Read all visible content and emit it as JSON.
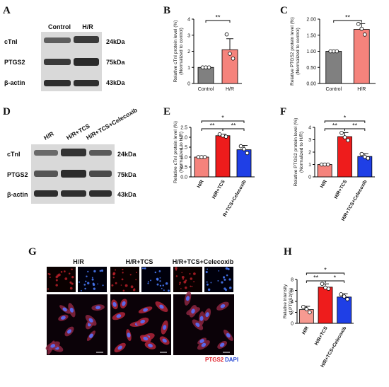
{
  "panels": {
    "A": {
      "letter": "A",
      "columns": [
        "Control",
        "H/R"
      ],
      "rows": [
        "cTnI",
        "PTGS2",
        "β-actin"
      ],
      "sizes": [
        "24kDa",
        "75kDa",
        "43kDa"
      ]
    },
    "B": {
      "letter": "B"
    },
    "C": {
      "letter": "C"
    },
    "D": {
      "letter": "D",
      "columns": [
        "H/R",
        "H/R+TCS",
        "H/R+TCS+Celecoxib"
      ],
      "rows": [
        "cTnI",
        "PTGS2",
        "β-actin"
      ],
      "sizes": [
        "24kDa",
        "75kDa",
        "43kDa"
      ]
    },
    "E": {
      "letter": "E"
    },
    "F": {
      "letter": "F"
    },
    "G": {
      "letter": "G",
      "columns": [
        "H/R",
        "H/R+TCS",
        "H/R+TCS+Celecoxib"
      ],
      "stain_red": "PTGS2",
      "stain_blue": "DAPI"
    },
    "H": {
      "letter": "H"
    }
  },
  "colors": {
    "gray": "#808080",
    "salmon": "#f5837c",
    "red": "#ee1c1c",
    "blue": "#1f3fe6",
    "light_salmon": "#f69a91"
  },
  "chart_data": [
    {
      "panel": "B",
      "type": "bar",
      "categories": [
        "Control",
        "H/R"
      ],
      "values": [
        1.0,
        2.1
      ],
      "errors": [
        0.0,
        0.68
      ],
      "points": [
        [
          1.0,
          1.0,
          1.0
        ],
        [
          3.05,
          1.85,
          1.55
        ]
      ],
      "colors": [
        "#808080",
        "#f5837c"
      ],
      "ylabel": "Relative cTnI protein level (%)\n(Normalized to control)",
      "ylim": [
        0,
        4
      ],
      "yticks": [
        0,
        1,
        2,
        3,
        4
      ],
      "significance": [
        {
          "from": 0,
          "to": 1,
          "label": "**"
        }
      ]
    },
    {
      "panel": "C",
      "type": "bar",
      "categories": [
        "Control",
        "H/R"
      ],
      "values": [
        1.0,
        1.68
      ],
      "errors": [
        0.0,
        0.18
      ],
      "points": [
        [
          1.0,
          1.0,
          1.0
        ],
        [
          1.85,
          1.7,
          1.52
        ]
      ],
      "colors": [
        "#808080",
        "#f5837c"
      ],
      "ylabel": "Relative PTGS2 protein level (%)\n(Normalized to control)",
      "ylim": [
        0,
        2.0
      ],
      "yticks": [
        0,
        0.5,
        1.0,
        1.5,
        2.0
      ],
      "yticklabels": [
        "0.00",
        "0.50",
        "1.00",
        "1.50",
        "2.00"
      ],
      "significance": [
        {
          "from": 0,
          "to": 1,
          "label": "**"
        }
      ]
    },
    {
      "panel": "E",
      "type": "bar",
      "categories": [
        "H/R",
        "H/R+TCS",
        "R+TCS+Celecoxib"
      ],
      "values": [
        1.0,
        2.08,
        1.37
      ],
      "errors": [
        0.0,
        0.07,
        0.22
      ],
      "points": [
        [
          1.0,
          1.0,
          1.0
        ],
        [
          2.15,
          2.08,
          2.03
        ],
        [
          1.55,
          1.4,
          1.2
        ]
      ],
      "colors": [
        "#f5837c",
        "#ee1c1c",
        "#1f3fe6"
      ],
      "ylabel": "Relative cTnI protein level (%)\n(Normalized to H/R)",
      "ylim": [
        0,
        2.5
      ],
      "yticks": [
        0,
        0.5,
        1.0,
        1.5,
        2.0,
        2.5
      ],
      "yticklabels": [
        "0.0",
        "0.5",
        "1.0",
        "1.5",
        "2.0",
        "2.5"
      ],
      "significance": [
        {
          "from": 0,
          "to": 1,
          "label": "**",
          "level": 0
        },
        {
          "from": 1,
          "to": 2,
          "label": "**",
          "level": 0
        },
        {
          "from": 0,
          "to": 2,
          "label": "*",
          "level": 1
        }
      ]
    },
    {
      "panel": "F",
      "type": "bar",
      "categories": [
        "H/R",
        "H/R+TCS",
        "H/R+TCS+Celecoxib"
      ],
      "values": [
        1.0,
        3.25,
        1.65
      ],
      "errors": [
        0.0,
        0.33,
        0.22
      ],
      "points": [
        [
          1.0,
          1.0,
          1.0
        ],
        [
          3.55,
          3.2,
          2.95
        ],
        [
          1.85,
          1.62,
          1.5
        ]
      ],
      "colors": [
        "#f5837c",
        "#ee1c1c",
        "#1f3fe6"
      ],
      "ylabel": "Relative PTGS2 protein level (%)\n(Normalized to H/R)",
      "ylim": [
        0,
        4
      ],
      "yticks": [
        0,
        1,
        2,
        3,
        4
      ],
      "significance": [
        {
          "from": 0,
          "to": 1,
          "label": "**",
          "level": 0
        },
        {
          "from": 1,
          "to": 2,
          "label": "**",
          "level": 0
        },
        {
          "from": 0,
          "to": 2,
          "label": "*",
          "level": 1
        }
      ]
    },
    {
      "panel": "H",
      "type": "bar",
      "categories": [
        "H/R",
        "H/R+TCS",
        "H/R+TCS+Celecoxib"
      ],
      "values": [
        2.5,
        6.6,
        4.8
      ],
      "errors": [
        0.6,
        0.6,
        0.6
      ],
      "points": [
        [
          3.0,
          2.6,
          2.0
        ],
        [
          7.2,
          6.5,
          6.3
        ],
        [
          5.3,
          4.9,
          4.4
        ]
      ],
      "colors": [
        "#f69a91",
        "#ee1c1c",
        "#1f3fe6"
      ],
      "ylabel": "Relative intensity\nof PTGS2(%)",
      "ylim": [
        0,
        8
      ],
      "yticks": [
        0,
        2,
        4,
        6,
        8
      ],
      "significance": [
        {
          "from": 0,
          "to": 1,
          "label": "**",
          "level": 0
        },
        {
          "from": 1,
          "to": 2,
          "label": "*",
          "level": 0
        },
        {
          "from": 0,
          "to": 2,
          "label": "*",
          "level": 1
        }
      ]
    }
  ]
}
